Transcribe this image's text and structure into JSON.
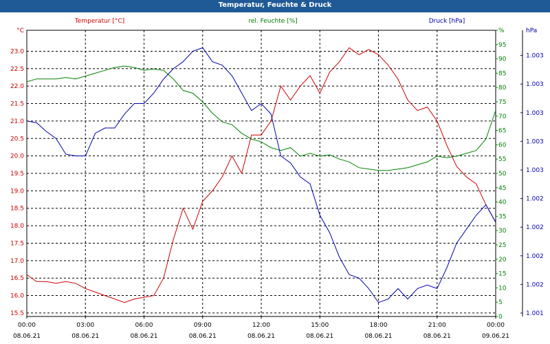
{
  "window": {
    "title": "Temperatur, Feuchte & Druck"
  },
  "chart_data": {
    "type": "line",
    "title": "Temperatur, Feuchte & Druck",
    "grid": true,
    "x_ticks": [
      {
        "time": "00:00",
        "date": "08.06.21"
      },
      {
        "time": "03:00",
        "date": "08.06.21"
      },
      {
        "time": "06:00",
        "date": "08.06.21"
      },
      {
        "time": "09:00",
        "date": "08.06.21"
      },
      {
        "time": "12:00",
        "date": "08.06.21"
      },
      {
        "time": "15:00",
        "date": "08.06.21"
      },
      {
        "time": "18:00",
        "date": "08.06.21"
      },
      {
        "time": "21:00",
        "date": "08.06.21"
      },
      {
        "time": "00:00",
        "date": "09.06.21"
      }
    ],
    "axes": {
      "temperature": {
        "label": "Temperatur [°C]",
        "unit": "°C",
        "color": "#cc0000",
        "range": [
          15.4,
          23.6
        ],
        "ticks": [
          "15.5",
          "16.0",
          "16.5",
          "17.0",
          "17.5",
          "18.0",
          "18.5",
          "19.0",
          "19.5",
          "20.0",
          "20.5",
          "21.0",
          "21.5",
          "22.0",
          "22.5",
          "23.0"
        ]
      },
      "humidity": {
        "label": "rel. Feuchte [%]",
        "unit": "%",
        "color": "#008000",
        "range": [
          0,
          100
        ],
        "ticks": [
          "0",
          "5",
          "10",
          "15",
          "20",
          "25",
          "30",
          "35",
          "40",
          "45",
          "50",
          "55",
          "60",
          "65",
          "70",
          "75",
          "80",
          "85",
          "90",
          "95",
          "%"
        ]
      },
      "pressure": {
        "label": "Druck [hPa]",
        "unit": "hPa",
        "color": "#0000aa",
        "ticks": [
          "1.001",
          "1.002",
          "1.002",
          "1.002",
          "1.002",
          "1.003",
          "1.003",
          "1.003",
          "1.003",
          "1.003",
          "hPa"
        ]
      }
    },
    "series": [
      {
        "name": "Temperatur",
        "axis": "temperature",
        "color": "#cc0000",
        "x_hours": [
          0,
          0.5,
          1,
          1.5,
          2,
          2.5,
          3,
          3.5,
          4,
          4.5,
          5,
          5.5,
          6,
          6.5,
          7,
          7.5,
          8,
          8.5,
          9,
          9.5,
          10,
          10.5,
          11,
          11.5,
          12,
          12.5,
          13,
          13.5,
          14,
          14.5,
          15,
          15.5,
          16,
          16.5,
          17,
          17.5,
          18,
          18.5,
          19,
          19.5,
          20,
          20.5,
          21,
          21.5,
          22,
          22.5,
          23,
          23.5,
          24
        ],
        "y": [
          16.6,
          16.4,
          16.4,
          16.35,
          16.4,
          16.35,
          16.2,
          16.1,
          16.0,
          15.9,
          15.8,
          15.9,
          15.95,
          16.0,
          16.5,
          17.6,
          18.5,
          17.9,
          18.7,
          19.0,
          19.4,
          20.0,
          19.5,
          20.6,
          20.6,
          21.0,
          22.0,
          21.6,
          22.0,
          22.3,
          21.8,
          22.4,
          22.7,
          23.1,
          22.9,
          23.05,
          22.9,
          22.6,
          22.2,
          21.6,
          21.3,
          21.4,
          21.0,
          20.3,
          19.7,
          19.4,
          19.2,
          18.6,
          18.1
        ]
      },
      {
        "name": "rel. Feuchte",
        "axis": "humidity",
        "color": "#008000",
        "x_hours": [
          0,
          0.5,
          1,
          1.5,
          2,
          2.5,
          3,
          3.5,
          4,
          4.5,
          5,
          5.5,
          6,
          6.5,
          7,
          7.5,
          8,
          8.5,
          9,
          9.5,
          10,
          10.5,
          11,
          11.5,
          12,
          12.5,
          13,
          13.5,
          14,
          14.5,
          15,
          15.5,
          16,
          16.5,
          17,
          17.5,
          18,
          18.5,
          19,
          19.5,
          20,
          20.5,
          21,
          21.5,
          22,
          22.5,
          23,
          23.5,
          24
        ],
        "y": [
          82,
          83,
          83,
          83,
          83.5,
          83,
          84,
          85,
          86,
          87,
          87.5,
          87,
          86,
          86.5,
          86,
          83,
          79,
          78,
          75,
          71,
          68,
          67,
          64,
          62,
          61,
          59,
          58,
          59,
          56,
          57,
          56,
          56.5,
          55,
          54,
          52,
          51.5,
          51,
          51,
          51.5,
          52,
          53,
          54,
          56,
          55.5,
          56,
          57,
          58,
          62,
          72
        ]
      },
      {
        "name": "Druck",
        "axis": "pressure",
        "color": "#0000aa",
        "px_min": 15.4,
        "px_max": 23.6,
        "x_hours": [
          0,
          0.5,
          1,
          1.5,
          2,
          2.5,
          3,
          3.5,
          4,
          4.5,
          5,
          5.5,
          6,
          6.5,
          7,
          7.5,
          8,
          8.5,
          9,
          9.5,
          10,
          10.5,
          11,
          11.5,
          12,
          12.5,
          13,
          13.5,
          14,
          14.5,
          15,
          15.5,
          16,
          16.5,
          17,
          17.5,
          18,
          18.5,
          19,
          19.5,
          20,
          20.5,
          21,
          21.5,
          22,
          22.5,
          23,
          23.5,
          24
        ],
        "y": [
          21.0,
          20.95,
          20.7,
          20.5,
          20.05,
          20.0,
          20.0,
          20.65,
          20.8,
          20.8,
          21.2,
          21.5,
          21.5,
          21.8,
          22.2,
          22.5,
          22.7,
          23.0,
          23.1,
          22.7,
          22.6,
          22.3,
          21.8,
          21.3,
          21.5,
          21.2,
          20.0,
          19.8,
          19.4,
          19.2,
          18.3,
          17.8,
          17.1,
          16.6,
          16.5,
          16.2,
          15.8,
          15.9,
          16.2,
          15.9,
          16.2,
          16.3,
          16.2,
          16.8,
          17.5,
          17.9,
          18.3,
          18.6,
          18.1
        ]
      }
    ]
  }
}
